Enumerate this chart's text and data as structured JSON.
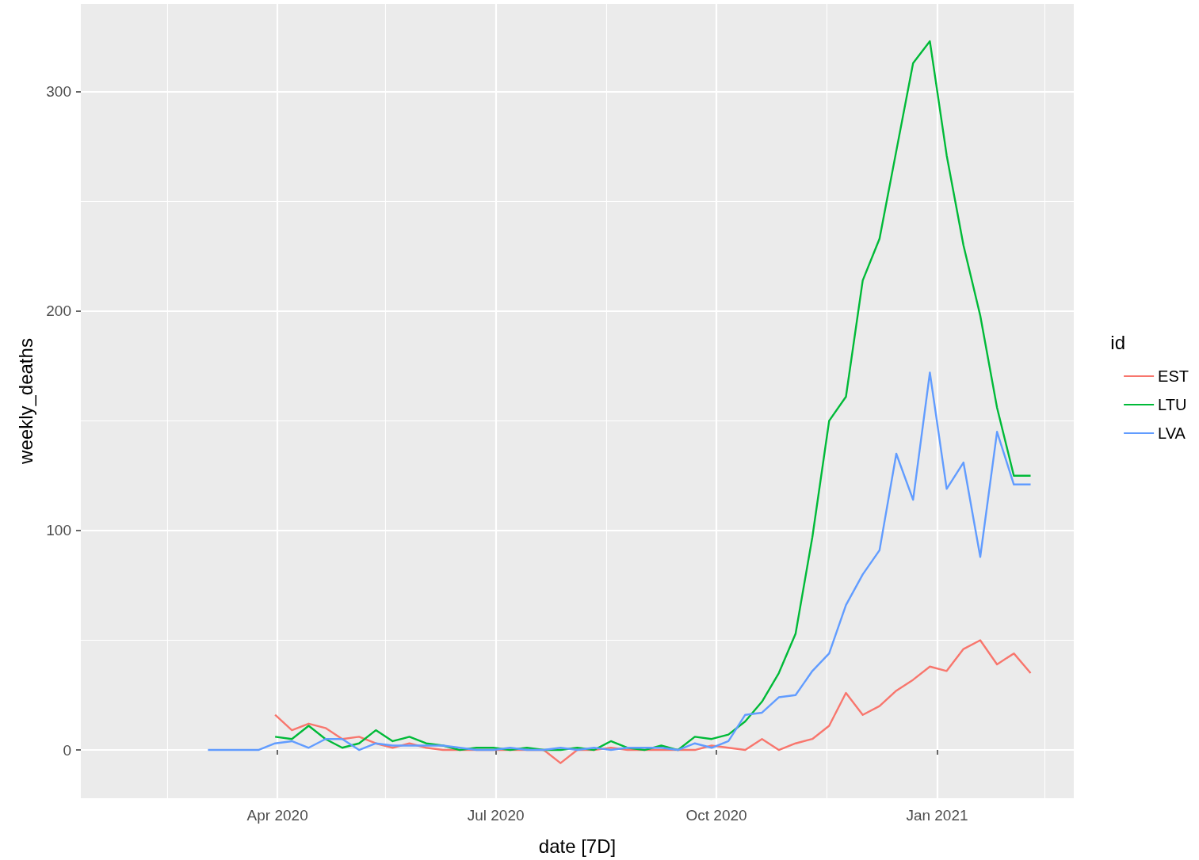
{
  "chart_data": {
    "type": "line",
    "xlabel": "date [7D]",
    "ylabel": "weekly_deaths",
    "legend_title": "id",
    "legend": "right",
    "grid": true,
    "marker": "none",
    "line_style": "solid",
    "x": [
      "2020-03-03",
      "2020-03-10",
      "2020-03-17",
      "2020-03-24",
      "2020-03-31",
      "2020-04-07",
      "2020-04-14",
      "2020-04-21",
      "2020-04-28",
      "2020-05-05",
      "2020-05-12",
      "2020-05-19",
      "2020-05-26",
      "2020-06-02",
      "2020-06-09",
      "2020-06-16",
      "2020-06-23",
      "2020-06-30",
      "2020-07-07",
      "2020-07-14",
      "2020-07-21",
      "2020-07-28",
      "2020-08-04",
      "2020-08-11",
      "2020-08-18",
      "2020-08-25",
      "2020-09-01",
      "2020-09-08",
      "2020-09-15",
      "2020-09-22",
      "2020-09-29",
      "2020-10-06",
      "2020-10-13",
      "2020-10-20",
      "2020-10-27",
      "2020-11-03",
      "2020-11-10",
      "2020-11-17",
      "2020-11-24",
      "2020-12-01",
      "2020-12-08",
      "2020-12-15",
      "2020-12-22",
      "2020-12-29",
      "2021-01-05",
      "2021-01-12",
      "2021-01-19",
      "2021-01-26",
      "2021-02-02",
      "2021-02-09"
    ],
    "series": [
      {
        "name": "EST",
        "color": "#f8766d",
        "values": [
          null,
          null,
          null,
          null,
          16,
          9,
          12,
          10,
          5,
          6,
          3,
          1,
          3,
          1,
          0,
          0,
          0,
          0,
          0,
          0,
          0,
          -6,
          0,
          0,
          1,
          0,
          0,
          0,
          0,
          0,
          2,
          1,
          0,
          5,
          0,
          3,
          5,
          11,
          26,
          16,
          20,
          27,
          32,
          38,
          36,
          46,
          50,
          39,
          44,
          35
        ]
      },
      {
        "name": "LTU",
        "color": "#00ba38",
        "values": [
          null,
          null,
          null,
          null,
          6,
          5,
          11,
          5,
          1,
          3,
          9,
          4,
          6,
          3,
          2,
          0,
          1,
          1,
          0,
          1,
          0,
          0,
          1,
          0,
          4,
          1,
          0,
          2,
          0,
          6,
          5,
          7,
          13,
          22,
          35,
          53,
          97,
          150,
          161,
          214,
          233,
          273,
          313,
          323,
          271,
          230,
          198,
          156,
          125,
          125
        ]
      },
      {
        "name": "LVA",
        "color": "#619cff",
        "values": [
          0,
          0,
          0,
          0,
          3,
          4,
          1,
          5,
          5,
          0,
          3,
          2,
          2,
          2,
          2,
          1,
          0,
          0,
          1,
          0,
          0,
          1,
          0,
          1,
          0,
          1,
          1,
          1,
          0,
          3,
          1,
          4,
          16,
          17,
          24,
          25,
          36,
          44,
          66,
          80,
          91,
          135,
          114,
          172,
          119,
          131,
          88,
          145,
          121,
          121
        ]
      }
    ],
    "xlim": [
      "2020-01-10",
      "2021-02-27"
    ],
    "xticks": [
      {
        "value": "2020-02-15",
        "label": null
      },
      {
        "value": "2020-04-01",
        "label": "Apr 2020"
      },
      {
        "value": "2020-05-16",
        "label": null
      },
      {
        "value": "2020-07-01",
        "label": "Jul 2020"
      },
      {
        "value": "2020-08-16",
        "label": null
      },
      {
        "value": "2020-10-01",
        "label": "Oct 2020"
      },
      {
        "value": "2020-11-16",
        "label": null
      },
      {
        "value": "2021-01-01",
        "label": "Jan 2021"
      },
      {
        "value": "2021-02-15",
        "label": null
      }
    ],
    "ylim": [
      -22,
      340
    ],
    "yticks": [
      0,
      {
        "value": 50,
        "label": null
      },
      100,
      {
        "value": 150,
        "label": null
      },
      200,
      {
        "value": 250,
        "label": null
      },
      300
    ]
  }
}
